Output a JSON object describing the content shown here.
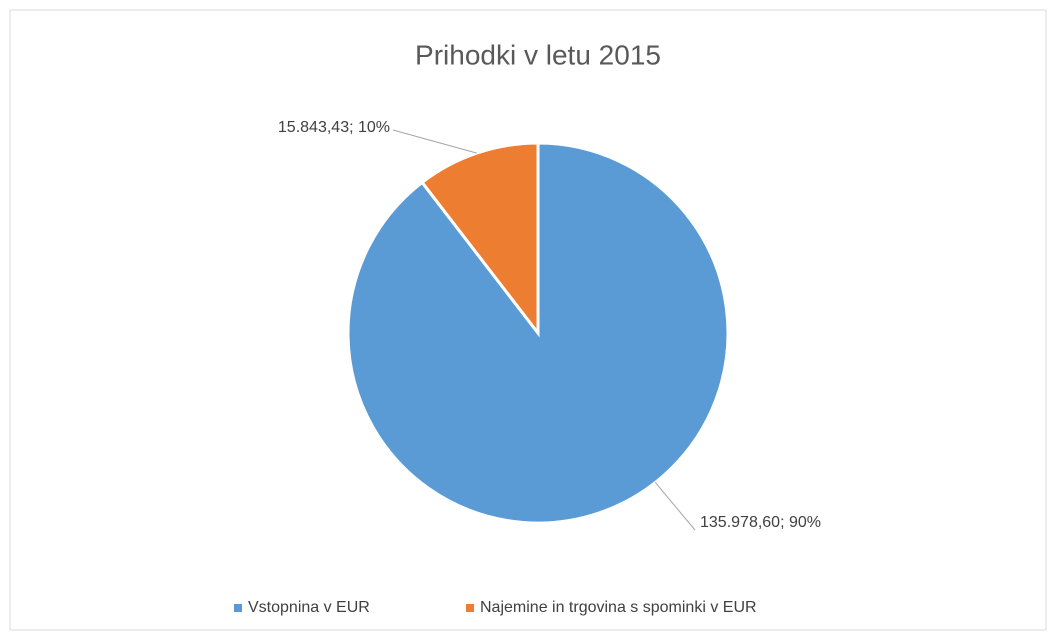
{
  "chart_data": {
    "type": "pie",
    "title": "Prihodki v letu 2015",
    "categories": [
      "Vstopnina v EUR",
      "Najemine in trgovina s spominki v EUR"
    ],
    "values": [
      135978.6,
      15843.43
    ],
    "value_labels": [
      "135.978,60; 90%",
      "15.843,43; 10%"
    ],
    "colors": [
      "#5b9bd5",
      "#ed7d31"
    ],
    "legend": "bottom"
  }
}
